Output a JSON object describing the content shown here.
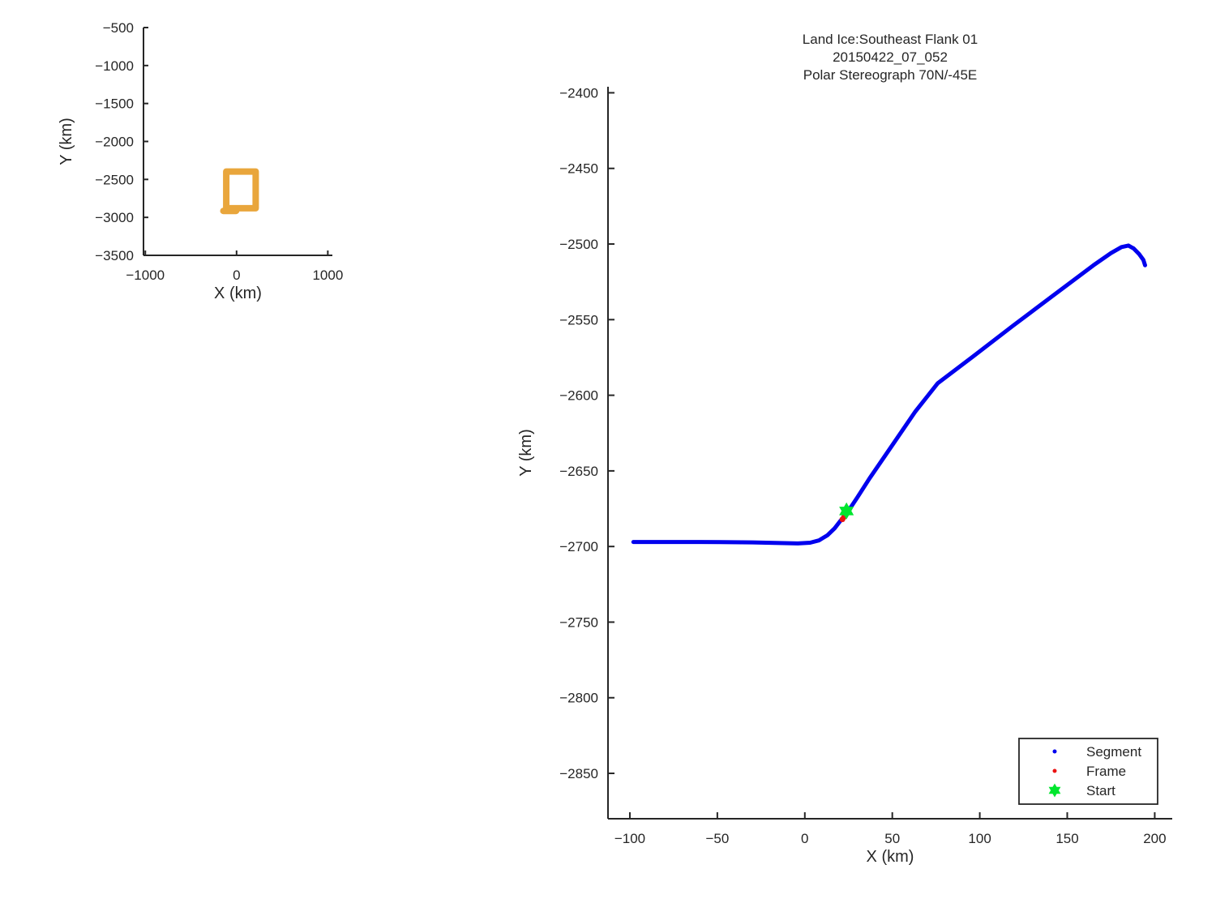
{
  "figure": {
    "background": "#ffffff",
    "axis_color": "#262626",
    "text_color": "#262626"
  },
  "chart_data": [
    {
      "id": "overview",
      "type": "line",
      "title_lines": [],
      "xlabel": "X (km)",
      "ylabel": "Y (km)",
      "xlim": [
        -1020,
        1050
      ],
      "ylim": [
        -3500,
        -500
      ],
      "xticks": [
        -1000,
        0,
        1000
      ],
      "yticks": [
        -500,
        -1000,
        -1500,
        -2000,
        -2500,
        -3000,
        -3500
      ],
      "grid": false,
      "legend": null,
      "series": [
        {
          "name": "coverage-extent-box",
          "label": "coverage extent",
          "type": "line",
          "color": "#E9A63C",
          "width": 8,
          "points": [
            [
              -112.5,
              -2396
            ],
            [
              210,
              -2396
            ],
            [
              210,
              -2880
            ],
            [
              -112.5,
              -2880
            ],
            [
              -112.5,
              -2396
            ]
          ]
        },
        {
          "name": "coverage-extent-tail",
          "label": "coverage extent tail",
          "type": "line",
          "color": "#E9A63C",
          "width": 8,
          "points": [
            [
              -145,
              -2915
            ],
            [
              -5,
              -2915
            ]
          ]
        }
      ]
    },
    {
      "id": "main",
      "type": "line",
      "title_lines": [
        "Land Ice:Southeast Flank 01",
        "20150422_07_052",
        "Polar Stereograph 70N/-45E"
      ],
      "xlabel": "X (km)",
      "ylabel": "Y (km)",
      "xlim": [
        -112.5,
        210
      ],
      "ylim": [
        -2880,
        -2396
      ],
      "xticks": [
        -100,
        -50,
        0,
        50,
        100,
        150,
        200
      ],
      "yticks": [
        -2400,
        -2450,
        -2500,
        -2550,
        -2600,
        -2650,
        -2700,
        -2750,
        -2800,
        -2850
      ],
      "grid": false,
      "legend": {
        "position": "lower-right",
        "entries": [
          {
            "label": "Segment",
            "marker": "dot",
            "color": "#0000EE",
            "size": 5
          },
          {
            "label": "Frame",
            "marker": "dot",
            "color": "#EB1212",
            "size": 5
          },
          {
            "label": "Start",
            "marker": "hexagram",
            "color": "#00E62E",
            "size": 17
          }
        ]
      },
      "series": [
        {
          "name": "segment-track",
          "label": "Segment",
          "type": "line",
          "color": "#0000EE",
          "width": 5,
          "points": [
            [
              -98,
              -2697
            ],
            [
              -60,
              -2697
            ],
            [
              -30,
              -2697.3
            ],
            [
              -4,
              -2698
            ],
            [
              3,
              -2697.5
            ],
            [
              8,
              -2696
            ],
            [
              13,
              -2692.5
            ],
            [
              17,
              -2688
            ],
            [
              20,
              -2683.5
            ],
            [
              24,
              -2678
            ],
            [
              30,
              -2667.6
            ],
            [
              37,
              -2655
            ],
            [
              50,
              -2633
            ],
            [
              63,
              -2611
            ],
            [
              76,
              -2592
            ],
            [
              96,
              -2574.5
            ],
            [
              119,
              -2554
            ],
            [
              142,
              -2534
            ],
            [
              165,
              -2514
            ],
            [
              175,
              -2506
            ],
            [
              181,
              -2502
            ],
            [
              185,
              -2501
            ],
            [
              188,
              -2503
            ],
            [
              191,
              -2506.5
            ],
            [
              193.5,
              -2510.5
            ],
            [
              194.5,
              -2514
            ]
          ]
        },
        {
          "name": "frame-markers",
          "label": "Frame",
          "type": "scatter",
          "marker": "dot",
          "color": "#EB1212",
          "size": 7,
          "points": [
            [
              21.5,
              -2682
            ],
            [
              22.4,
              -2680.5
            ]
          ]
        },
        {
          "name": "start-marker",
          "label": "Start",
          "type": "scatter",
          "marker": "hexagram",
          "color": "#00E62E",
          "size": 21,
          "points": [
            [
              23.8,
              -2676.5
            ]
          ]
        }
      ]
    }
  ]
}
